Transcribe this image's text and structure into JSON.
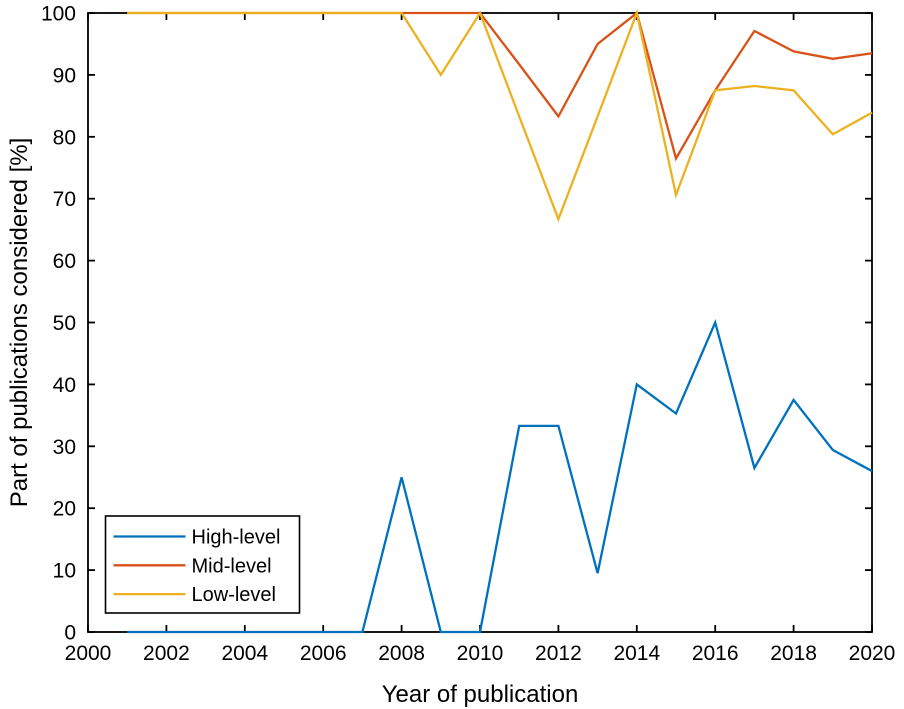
{
  "figure": {
    "background": "#ffffff",
    "axis_color": "#000000",
    "text_color": "#000000"
  },
  "chart_data": {
    "type": "line",
    "title": "",
    "xlabel": "Year of publication",
    "ylabel": "Part of publications considered [%]",
    "xlim": [
      2000,
      2020
    ],
    "ylim": [
      0,
      100
    ],
    "x_ticks": [
      2000,
      2002,
      2004,
      2006,
      2008,
      2010,
      2012,
      2014,
      2016,
      2018,
      2020
    ],
    "y_ticks": [
      0,
      10,
      20,
      30,
      40,
      50,
      60,
      70,
      80,
      90,
      100
    ],
    "grid": false,
    "legend_position": "lower-left",
    "x": [
      2001,
      2002,
      2003,
      2004,
      2005,
      2006,
      2007,
      2008,
      2009,
      2010,
      2011,
      2012,
      2013,
      2014,
      2015,
      2016,
      2017,
      2018,
      2019,
      2020
    ],
    "series": [
      {
        "name": "High-level",
        "color": "#0072BD",
        "values": [
          0,
          0,
          0,
          0,
          0,
          0,
          0,
          25,
          0,
          0,
          33.3,
          33.3,
          9.5,
          40,
          35.3,
          50,
          26.5,
          37.5,
          29.4,
          26
        ]
      },
      {
        "name": "Mid-level",
        "color": "#D95319",
        "values": [
          100,
          100,
          100,
          100,
          100,
          100,
          100,
          100,
          100,
          100,
          91.7,
          83.3,
          95,
          100,
          76.5,
          87.5,
          97.1,
          93.8,
          92.6,
          93.5
        ]
      },
      {
        "name": "Low-level",
        "color": "#EDB120",
        "values": [
          100,
          100,
          100,
          100,
          100,
          100,
          100,
          100,
          90,
          100,
          83.3,
          66.7,
          83.3,
          100,
          70.6,
          87.5,
          88.2,
          87.5,
          80.4,
          83.9
        ]
      }
    ]
  }
}
